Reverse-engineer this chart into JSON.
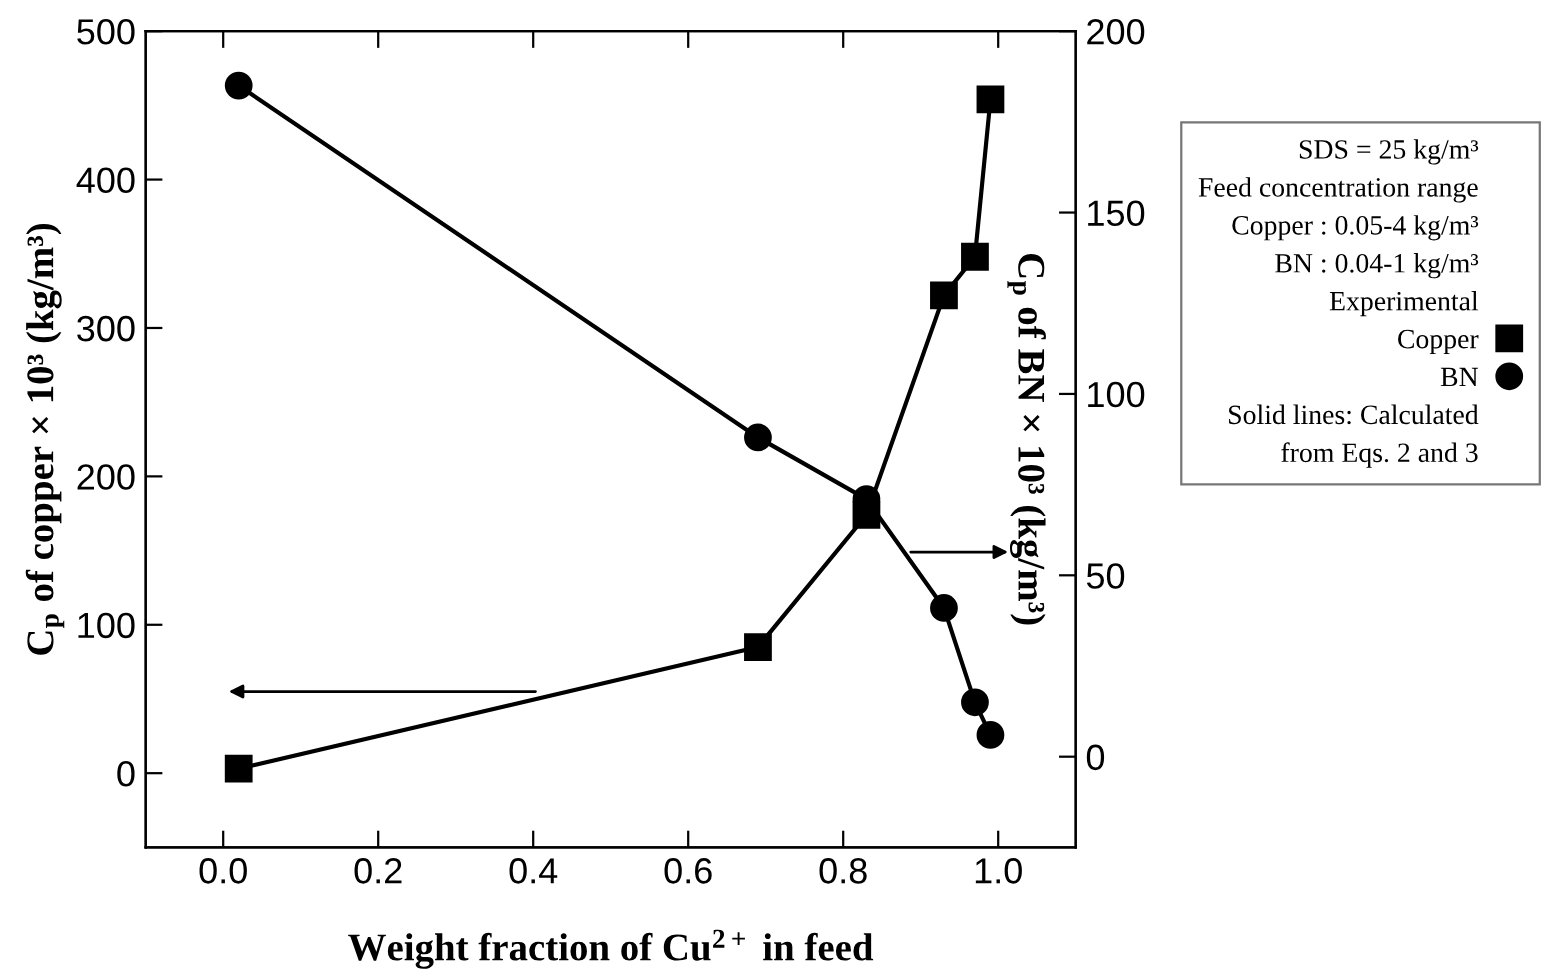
{
  "chart_data": {
    "type": "line",
    "xlabel": "Weight fraction of Cu$^{2+}$ in feed",
    "ylabel": "C$_{p}$ of copper × 10³ (kg/m³)",
    "y2label": "C$_{p}$ of BN × 10³ (kg/m³)",
    "x": [
      0.02,
      0.69,
      0.83,
      0.93,
      0.97,
      0.99
    ],
    "series": [
      {
        "name": "Copper",
        "color": "#000000",
        "marker": "square",
        "values": [
          3,
          85,
          174,
          322,
          348,
          454
        ]
      },
      {
        "name": "BN",
        "color": "#000000",
        "marker": "circle",
        "axis": "y2",
        "values": [
          185,
          88,
          71,
          41,
          15,
          6
        ]
      }
    ],
    "xlim": [
      -0.1,
      1.1
    ],
    "xticks": [
      {
        "value": 0.0,
        "label": "0.0"
      },
      {
        "value": 0.2,
        "label": "0.2"
      },
      {
        "value": 0.4,
        "label": "0.4"
      },
      {
        "value": 0.6,
        "label": "0.6"
      },
      {
        "value": 0.8,
        "label": "0.8"
      },
      {
        "value": 1.0,
        "label": "1.0"
      }
    ],
    "ylim": [
      -50,
      500
    ],
    "yticks": [
      0,
      100,
      200,
      300,
      400,
      500
    ],
    "y2lim": [
      -25,
      200
    ],
    "y2ticks": [
      0,
      50,
      100,
      150,
      200
    ],
    "line_style": "solid",
    "legend": "right",
    "grid": false,
    "annotations": [
      "SDS = 25 kg/m³",
      "Feed concentration range",
      "Copper : 0.05-4 kg/m³",
      "BN : 0.04-1 kg/m³",
      "Experimental",
      "Solid lines: Calculated",
      "from Eqs. 2 and 3"
    ]
  }
}
